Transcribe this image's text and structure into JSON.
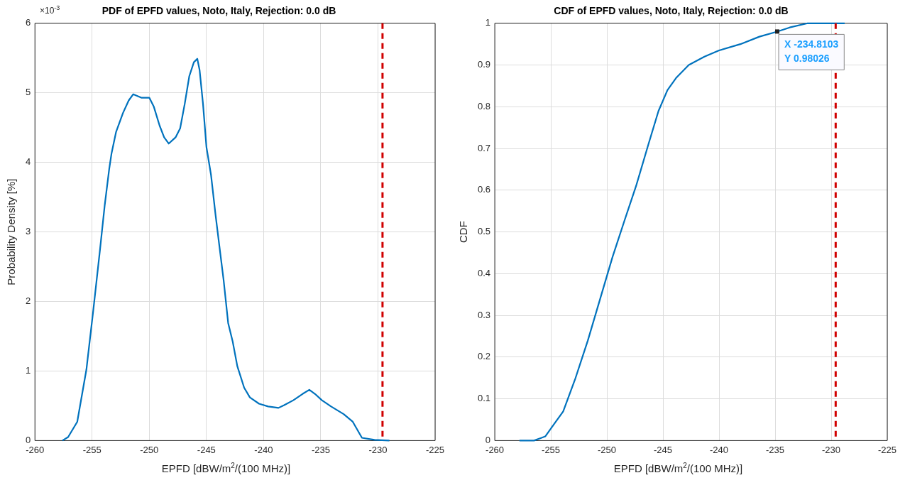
{
  "chart_data": [
    {
      "type": "line",
      "title": "PDF of EPFD values, Noto, Italy, Rejection: 0.0 dB",
      "xlabel": "EPFD [dBW/m$^{2}$/(100 MHz)]",
      "ylabel": "Probability Density [%]",
      "annotations": [
        "×10$^{-3}$"
      ],
      "series": [
        {
          "color": "#0072bd",
          "x": [
            -257.6,
            -257.1,
            -256.3,
            -255.5,
            -254.9,
            -254.3,
            -253.9,
            -253.5,
            -253.3,
            -252.9,
            -252.3,
            -251.8,
            -251.4,
            -250.7,
            -250.0,
            -249.6,
            -249.1,
            -248.7,
            -248.3,
            -247.7,
            -247.3,
            -246.9,
            -246.5,
            -246.1,
            -245.8,
            -245.6,
            -245.3,
            -245.0,
            -244.6,
            -244.2,
            -243.9,
            -243.5,
            -243.1,
            -242.7,
            -242.3,
            -241.7,
            -241.2,
            -240.4,
            -239.6,
            -238.7,
            -238.2,
            -237.4,
            -236.6,
            -236.0,
            -235.5,
            -234.9,
            -234.1,
            -233.0,
            -232.2,
            -231.4,
            -230.3,
            -229.0
          ],
          "values": [
            0,
            0.05,
            0.27,
            1.02,
            1.87,
            2.76,
            3.38,
            3.91,
            4.13,
            4.44,
            4.71,
            4.89,
            4.98,
            4.93,
            4.93,
            4.8,
            4.53,
            4.36,
            4.27,
            4.36,
            4.49,
            4.84,
            5.24,
            5.44,
            5.49,
            5.33,
            4.84,
            4.22,
            3.82,
            3.24,
            2.84,
            2.31,
            1.69,
            1.42,
            1.07,
            0.76,
            0.62,
            0.53,
            0.49,
            0.47,
            0.51,
            0.58,
            0.67,
            0.73,
            0.67,
            0.58,
            0.49,
            0.38,
            0.27,
            0.04,
            0.01,
            0
          ]
        }
      ],
      "xlim": [
        -260,
        -225
      ],
      "xticks": [
        -260,
        -255,
        -250,
        -245,
        -240,
        -235,
        -230,
        -225
      ],
      "ylim": [
        0,
        6
      ],
      "yticks": [
        0,
        1,
        2,
        3,
        4,
        5,
        6
      ],
      "grid": true,
      "legend": false,
      "marker": "none",
      "line_style": "solid",
      "ref_lines": [
        {
          "axis": "x",
          "value": -229.6,
          "color": "#d00000",
          "line_style": "dashed"
        }
      ]
    },
    {
      "type": "line",
      "title": "CDF of EPFD values, Noto, Italy, Rejection: 0.0 dB",
      "xlabel": "EPFD [dBW/m$^{2}$/(100 MHz)]",
      "ylabel": "CDF",
      "annotations": [
        {
          "text": "X -234.8103\nY 0.98026",
          "x": -234.8103,
          "y": 0.98026
        }
      ],
      "series": [
        {
          "color": "#0072bd",
          "x": [
            -257.8,
            -256.5,
            -255.5,
            -254.7,
            -253.9,
            -252.8,
            -251.7,
            -250.6,
            -249.5,
            -248.4,
            -247.4,
            -246.3,
            -245.4,
            -244.6,
            -243.8,
            -242.7,
            -241.3,
            -240.0,
            -238.1,
            -236.4,
            -234.8103,
            -233.7,
            -232.1,
            -228.8
          ],
          "values": [
            0,
            0,
            0.01,
            0.04,
            0.07,
            0.15,
            0.24,
            0.34,
            0.44,
            0.53,
            0.61,
            0.71,
            0.79,
            0.84,
            0.87,
            0.9,
            0.92,
            0.935,
            0.95,
            0.968,
            0.98,
            0.99,
            1,
            1
          ]
        }
      ],
      "xlim": [
        -260,
        -225
      ],
      "xticks": [
        -260,
        -255,
        -250,
        -245,
        -240,
        -235,
        -230,
        -225
      ],
      "ylim": [
        0,
        1
      ],
      "yticks": [
        0,
        0.1,
        0.2,
        0.3,
        0.4,
        0.5,
        0.6,
        0.7,
        0.8,
        0.9,
        1
      ],
      "grid": true,
      "legend": false,
      "marker": "none",
      "line_style": "solid",
      "ref_lines": [
        {
          "axis": "x",
          "value": -229.6,
          "color": "#d00000",
          "line_style": "dashed"
        }
      ]
    }
  ]
}
